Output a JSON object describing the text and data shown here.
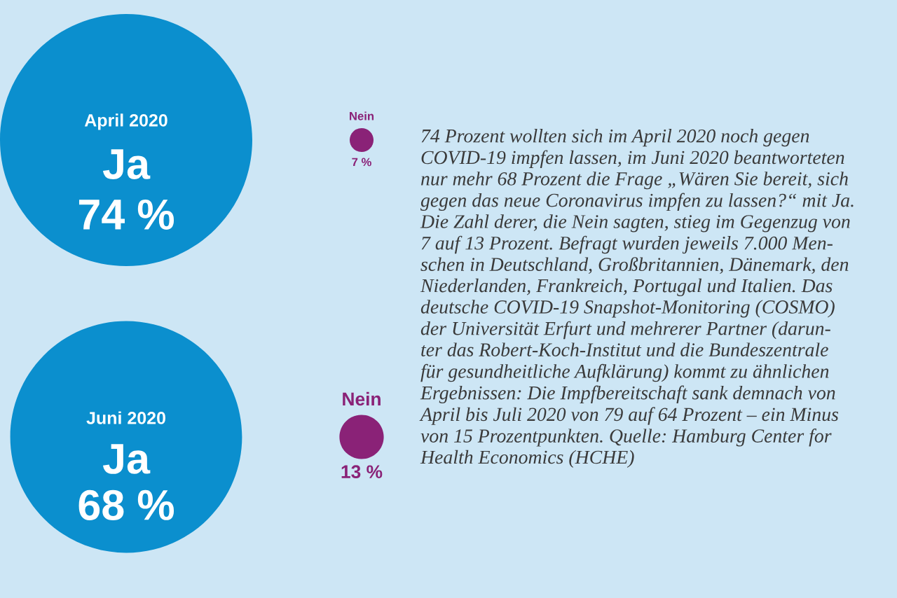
{
  "chart_data": [
    {
      "type": "other",
      "title": "April 2020",
      "categories": [
        "Ja",
        "Nein"
      ],
      "values": [
        74,
        7
      ],
      "value_labels": [
        "74 %",
        "7 %"
      ],
      "colors": [
        "#0b8fce",
        "#8a2277"
      ]
    },
    {
      "type": "other",
      "title": "Juni 2020",
      "categories": [
        "Ja",
        "Nein"
      ],
      "values": [
        68,
        13
      ],
      "value_labels": [
        "68 %",
        "13 %"
      ],
      "colors": [
        "#0b8fce",
        "#8a2277"
      ]
    },
    {
      "type": "other",
      "annotations": [
        "74 Prozent wollten sich im April 2020 noch gegen\nCOVID-19 impfen lassen, im Juni 2020 beantworteten\nnur mehr 68 Prozent die Frage „Wären Sie bereit, sich\ngegen das neue Coronavirus impfen zu lassen?“ mit Ja.\nDie Zahl derer, die Nein sagten, stieg im Gegenzug von\n7 auf 13 Prozent. Befragt wurden jeweils 7.000 Men-\nschen in Deutschland, Großbritannien, Dänemark, den\nNiederlanden, Frankreich, Portugal und Italien. Das\ndeutsche COVID-19 Snapshot-Monitoring (COSMO)\nder Universität Erfurt und mehrerer Partner (darun-\nter das Robert-Koch-Institut und die Bundeszentrale\nfür gesundheitliche Aufklärung) kommt zu ähnlichen\nErgebnissen: Die Impfbereitschaft sank demnach von\nApril bis Juli 2020 von 79 auf 64 Prozent – ein Minus\nvon 15 Prozentpunkten. Quelle: Hamburg Center for\nHealth Economics (HCHE)"
      ]
    }
  ]
}
